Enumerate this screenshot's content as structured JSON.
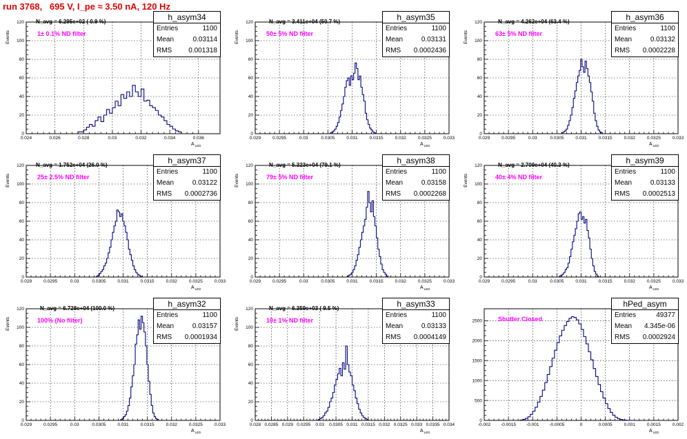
{
  "page": {
    "title": "run 3768,   695 V, I_pe ≈ 3.50 nA, 120 Hz",
    "accent_color": "#e00000",
    "filter_color": "#ff00ff",
    "hist_color": "#000080"
  },
  "stat_labels": {
    "entries": "Entries",
    "mean": "Mean",
    "rms": "RMS"
  },
  "chart_data": [
    {
      "type": "histogram",
      "name": "h_asym34",
      "navg": "N_avg = 6.295e+02 ( 0.9 %)",
      "filter": "1± 0.1% ND filter",
      "entries": "1100",
      "mean": "0.03114",
      "rms": "0.001318",
      "ylabel": "Events",
      "xlabel": "A",
      "xlabel_sub": "LED",
      "xlim": [
        0.024,
        0.0375
      ],
      "ylim": [
        0,
        120
      ],
      "xticks": [
        0.024,
        0.026,
        0.028,
        0.03,
        0.032,
        0.034,
        0.036
      ],
      "xtick_labels": [
        "0.024",
        "0.026",
        "0.028",
        "0.03",
        "0.032",
        "0.034",
        "0.036"
      ],
      "yticks": [
        0,
        20,
        40,
        60,
        80,
        100,
        120
      ],
      "ytick_labels": [
        "0",
        "20",
        "40",
        "60",
        "80",
        "100",
        "120"
      ],
      "bins": {
        "x0": 0.0276,
        "width": 0.0002,
        "counts": [
          2,
          2,
          4,
          7,
          10,
          8,
          14,
          18,
          13,
          20,
          26,
          22,
          28,
          35,
          30,
          42,
          38,
          45,
          40,
          52,
          45,
          40,
          48,
          35,
          36,
          30,
          28,
          25,
          20,
          18,
          14,
          10,
          8,
          5,
          3,
          2
        ]
      }
    },
    {
      "type": "histogram",
      "name": "h_asym35",
      "navg": "N_avg = 3.411e+04 (50.7 %)",
      "filter": "50± 5% ND filter",
      "entries": "1100",
      "mean": "0.03131",
      "rms": "0.0002436",
      "ylabel": "Events",
      "xlabel": "A",
      "xlabel_sub": "LED",
      "xlim": [
        0.029,
        0.033
      ],
      "ylim": [
        0,
        120
      ],
      "xticks": [
        0.029,
        0.0295,
        0.03,
        0.0305,
        0.031,
        0.0315,
        0.032,
        0.0325,
        0.033
      ],
      "xtick_labels": [
        "0.029",
        "0.0295",
        "0.03",
        "0.0305",
        "0.031",
        "0.0315",
        "0.032",
        "0.0325",
        "0.033"
      ],
      "yticks": [
        0,
        20,
        40,
        60,
        80,
        100,
        120
      ],
      "ytick_labels": [
        "0",
        "20",
        "40",
        "60",
        "80",
        "100",
        "120"
      ],
      "bins": {
        "x0": 0.03055,
        "width": 3e-05,
        "counts": [
          1,
          2,
          3,
          5,
          8,
          12,
          18,
          25,
          32,
          40,
          50,
          57,
          60,
          52,
          62,
          58,
          65,
          76,
          70,
          58,
          62,
          50,
          42,
          35,
          22,
          15,
          10,
          6,
          4,
          2,
          1
        ]
      }
    },
    {
      "type": "histogram",
      "name": "h_asym36",
      "navg": "N_avg = 4.262e+04 (63.4 %)",
      "filter": "63± 5% ND filter",
      "entries": "1100",
      "mean": "0.03132",
      "rms": "0.0002228",
      "ylabel": "Events",
      "xlabel": "A",
      "xlabel_sub": "LED",
      "xlim": [
        0.029,
        0.033
      ],
      "ylim": [
        0,
        120
      ],
      "xticks": [
        0.029,
        0.0295,
        0.03,
        0.0305,
        0.031,
        0.0315,
        0.032,
        0.0325,
        0.033
      ],
      "xtick_labels": [
        "0.029",
        "0.0295",
        "0.03",
        "0.0305",
        "0.031",
        "0.0315",
        "0.032",
        "0.0325",
        "0.033"
      ],
      "yticks": [
        0,
        20,
        40,
        60,
        80,
        100,
        120
      ],
      "ytick_labels": [
        "0",
        "20",
        "40",
        "60",
        "80",
        "100",
        "120"
      ],
      "bins": {
        "x0": 0.0306,
        "width": 3e-05,
        "counts": [
          1,
          2,
          3,
          5,
          9,
          14,
          20,
          28,
          38,
          46,
          55,
          62,
          68,
          80,
          72,
          66,
          78,
          70,
          62,
          55,
          45,
          35,
          22,
          14,
          8,
          4,
          2,
          1
        ]
      }
    },
    {
      "type": "histogram",
      "name": "h_asym37",
      "navg": "N_avg = 1.752e+04 (26.0 %)",
      "filter": "25± 2.5% ND filter",
      "entries": "1100",
      "mean": "0.03122",
      "rms": "0.0002736",
      "ylabel": "Events",
      "xlabel": "A",
      "xlabel_sub": "LED",
      "xlim": [
        0.029,
        0.033
      ],
      "ylim": [
        0,
        120
      ],
      "xticks": [
        0.029,
        0.0295,
        0.03,
        0.0305,
        0.031,
        0.0315,
        0.032,
        0.0325,
        0.033
      ],
      "xtick_labels": [
        "0.029",
        "0.0295",
        "0.03",
        "0.0305",
        "0.031",
        "0.0315",
        "0.032",
        "0.0325",
        "0.033"
      ],
      "yticks": [
        0,
        20,
        40,
        60,
        80,
        100,
        120
      ],
      "ytick_labels": [
        "0",
        "20",
        "40",
        "60",
        "80",
        "100",
        "120"
      ],
      "bins": {
        "x0": 0.03045,
        "width": 3e-05,
        "counts": [
          1,
          2,
          4,
          6,
          8,
          12,
          15,
          20,
          26,
          32,
          40,
          48,
          55,
          60,
          72,
          70,
          65,
          68,
          60,
          55,
          48,
          40,
          30,
          24,
          18,
          12,
          8,
          5,
          3,
          2,
          1
        ]
      }
    },
    {
      "type": "histogram",
      "name": "h_asym38",
      "navg": "N_avg = 5.323e+04 (79.1 %)",
      "filter": "79± 5% ND filter",
      "entries": "1100",
      "mean": "0.03158",
      "rms": "0.0002268",
      "ylabel": "Events",
      "xlabel": "A",
      "xlabel_sub": "LED",
      "xlim": [
        0.029,
        0.033
      ],
      "ylim": [
        0,
        120
      ],
      "xticks": [
        0.029,
        0.0295,
        0.03,
        0.0305,
        0.031,
        0.0315,
        0.032,
        0.0325,
        0.033
      ],
      "xtick_labels": [
        "0.029",
        "0.0295",
        "0.03",
        "0.0305",
        "0.031",
        "0.0315",
        "0.032",
        "0.0325",
        "0.033"
      ],
      "yticks": [
        0,
        20,
        40,
        60,
        80,
        100,
        120
      ],
      "ytick_labels": [
        "0",
        "20",
        "40",
        "60",
        "80",
        "100",
        "120"
      ],
      "bins": {
        "x0": 0.0309,
        "width": 3e-05,
        "counts": [
          1,
          2,
          3,
          5,
          8,
          12,
          18,
          24,
          32,
          40,
          48,
          55,
          62,
          75,
          92,
          80,
          70,
          82,
          65,
          55,
          42,
          30,
          22,
          14,
          8,
          5,
          3,
          1
        ]
      }
    },
    {
      "type": "histogram",
      "name": "h_asym39",
      "navg": "N_avg = 2.709e+04 (40.3 %)",
      "filter": "40± 4% ND filter",
      "entries": "1100",
      "mean": "0.03133",
      "rms": "0.0002513",
      "ylabel": "Events",
      "xlabel": "A",
      "xlabel_sub": "LED",
      "xlim": [
        0.029,
        0.033
      ],
      "ylim": [
        0,
        120
      ],
      "xticks": [
        0.029,
        0.0295,
        0.03,
        0.0305,
        0.031,
        0.0315,
        0.032,
        0.0325,
        0.033
      ],
      "xtick_labels": [
        "0.029",
        "0.0295",
        "0.03",
        "0.0305",
        "0.031",
        "0.0315",
        "0.032",
        "0.0325",
        "0.033"
      ],
      "yticks": [
        0,
        20,
        40,
        60,
        80,
        100,
        120
      ],
      "ytick_labels": [
        "0",
        "20",
        "40",
        "60",
        "80",
        "100",
        "120"
      ],
      "bins": {
        "x0": 0.03055,
        "width": 3e-05,
        "counts": [
          1,
          2,
          3,
          5,
          8,
          10,
          15,
          22,
          30,
          38,
          45,
          52,
          60,
          68,
          70,
          62,
          65,
          58,
          62,
          50,
          42,
          30,
          20,
          12,
          6,
          3,
          1
        ]
      }
    },
    {
      "type": "histogram",
      "name": "h_asym32",
      "navg": "N_avg = 6.728e+04 (100.0 %)",
      "filter": "100% (No filter)",
      "entries": "1100",
      "mean": "0.03157",
      "rms": "0.0001934",
      "ylabel": "Events",
      "xlabel": "A",
      "xlabel_sub": "LED",
      "xlim": [
        0.029,
        0.033
      ],
      "ylim": [
        0,
        120
      ],
      "xticks": [
        0.029,
        0.0295,
        0.03,
        0.0305,
        0.031,
        0.0315,
        0.032,
        0.0325,
        0.033
      ],
      "xtick_labels": [
        "0.029",
        "0.0295",
        "0.03",
        "0.0305",
        "0.031",
        "0.0315",
        "0.032",
        "0.0325",
        "0.033"
      ],
      "yticks": [
        0,
        20,
        40,
        60,
        80,
        100,
        120
      ],
      "ytick_labels": [
        "0",
        "20",
        "40",
        "60",
        "80",
        "100",
        "120"
      ],
      "bins": {
        "x0": 0.03095,
        "width": 3e-05,
        "counts": [
          1,
          2,
          4,
          6,
          10,
          16,
          24,
          36,
          48,
          60,
          82,
          92,
          108,
          98,
          112,
          105,
          95,
          80,
          60,
          42,
          28,
          16,
          8,
          4,
          2,
          1
        ]
      }
    },
    {
      "type": "histogram",
      "name": "h_asym33",
      "navg": "N_avg = 6.359e+03 ( 9.5 %)",
      "filter": "10± 1% ND filter",
      "entries": "1100",
      "mean": "0.03133",
      "rms": "0.0004149",
      "ylabel": "Events",
      "xlabel": "A",
      "xlabel_sub": "LED",
      "xlim": [
        0.028,
        0.034
      ],
      "ylim": [
        0,
        120
      ],
      "xticks": [
        0.028,
        0.0285,
        0.029,
        0.0295,
        0.03,
        0.0305,
        0.031,
        0.0315,
        0.032,
        0.0325,
        0.033,
        0.0335,
        0.034
      ],
      "xtick_labels": [
        "0.028",
        "0.0285",
        "0.029",
        "0.0295",
        "0.03",
        "0.0305",
        "0.031",
        "0.0315",
        "0.032",
        "0.0325",
        "0.033",
        "0.0335",
        "0.034"
      ],
      "yticks": [
        0,
        20,
        40,
        60,
        80,
        100,
        120
      ],
      "ytick_labels": [
        "0",
        "20",
        "40",
        "60",
        "80",
        "100",
        "120"
      ],
      "bins": {
        "x0": 0.02995,
        "width": 5e-05,
        "counts": [
          1,
          2,
          3,
          5,
          8,
          10,
          14,
          20,
          24,
          30,
          38,
          44,
          50,
          56,
          48,
          62,
          55,
          80,
          60,
          52,
          48,
          38,
          32,
          24,
          18,
          12,
          8,
          5,
          3,
          2,
          1
        ]
      }
    },
    {
      "type": "histogram",
      "name": "hPed_asym",
      "navg": "",
      "filter": "Shutter Closed",
      "entries": "49377",
      "mean": "4.345e-06",
      "rms": "0.0002924",
      "ylabel": "",
      "xlabel": "A",
      "xlabel_sub": "LED",
      "xlim": [
        -0.002,
        0.002
      ],
      "ylim": [
        0,
        2800
      ],
      "xticks": [
        -0.002,
        -0.0015,
        -0.001,
        -0.0005,
        0,
        0.0005,
        0.001,
        0.0015,
        0.002
      ],
      "xtick_labels": [
        "-0.002",
        "-0.0015",
        "-0.001",
        "-0.0005",
        "0",
        "0.0005",
        "0.001",
        "0.0015",
        "0.002"
      ],
      "yticks": [
        0,
        500,
        1000,
        1500,
        2000,
        2500
      ],
      "ytick_labels": [
        "0",
        "500",
        "1000",
        "1500",
        "2000",
        "2500"
      ],
      "bins": {
        "x0": -0.00125,
        "width": 5e-05,
        "counts": [
          10,
          25,
          50,
          90,
          150,
          230,
          330,
          460,
          600,
          760,
          950,
          1150,
          1350,
          1560,
          1760,
          1950,
          2120,
          2260,
          2380,
          2480,
          2560,
          2600,
          2580,
          2520,
          2420,
          2280,
          2100,
          1920,
          1720,
          1520,
          1300,
          1100,
          900,
          720,
          560,
          420,
          300,
          200,
          130,
          80,
          45,
          25,
          12,
          5,
          2,
          1
        ]
      }
    }
  ]
}
